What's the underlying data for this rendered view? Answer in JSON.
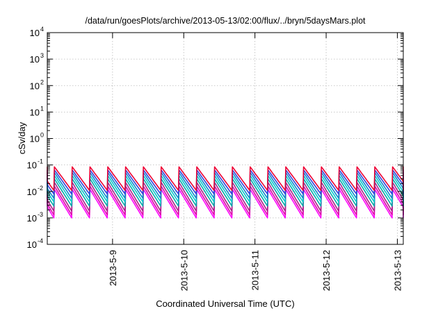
{
  "chart_data": {
    "type": "line",
    "title": "/data/run/goesPlots/archive/2013-05-13/02:00/flux/../bryn/5daysMars.plot",
    "xlabel": "Coordinated Universal Time (UTC)",
    "ylabel": "cSv/day",
    "yscale": "log",
    "ylim_exponents": [
      -4,
      4
    ],
    "y_tick_base": "10",
    "y_tick_exponents": [
      "-4",
      "-3",
      "-2",
      "-1",
      "0",
      "1",
      "2",
      "3",
      "4"
    ],
    "x_start": "2013-05-08 02:00",
    "x_end": "2013-05-13 02:00",
    "x_ticks": [
      {
        "label": "2013-5-9",
        "value": "2013-05-09"
      },
      {
        "label": "2013-5-10",
        "value": "2013-05-10"
      },
      {
        "label": "2013-5-11",
        "value": "2013-05-11"
      },
      {
        "label": "2013-5-12",
        "value": "2013-05-12"
      },
      {
        "label": "2013-5-13",
        "value": "2013-05-13"
      }
    ],
    "grid": true,
    "sawtooth_period_hours": 6,
    "sawtooth_cycles": 20,
    "series": [
      {
        "color": "#ff00ff",
        "peak": 0.012,
        "trough": 0.001
      },
      {
        "color": "#dd00aa",
        "peak": 0.016,
        "trough": 0.0013
      },
      {
        "color": "#aa2288",
        "peak": 0.022,
        "trough": 0.0018
      },
      {
        "color": "#00aaaa",
        "peak": 0.03,
        "trough": 0.0028
      },
      {
        "color": "#00cccc",
        "peak": 0.04,
        "trough": 0.004
      },
      {
        "color": "#1188cc",
        "peak": 0.052,
        "trough": 0.0055
      },
      {
        "color": "#3344dd",
        "peak": 0.065,
        "trough": 0.008
      },
      {
        "color": "#ee0033",
        "peak": 0.085,
        "trough": 0.011
      }
    ]
  }
}
